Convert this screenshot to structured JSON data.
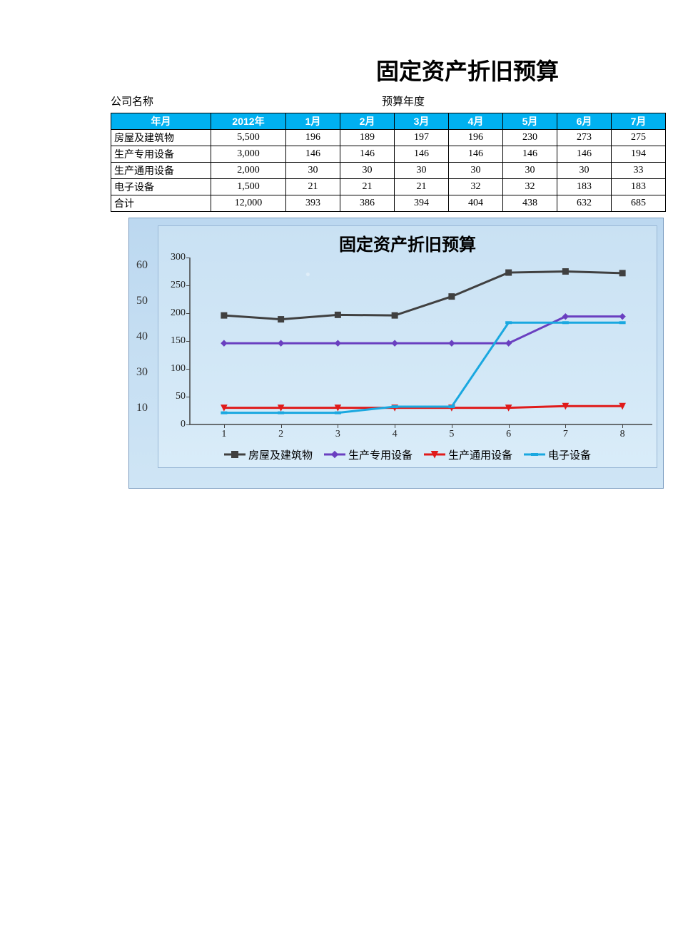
{
  "title": "固定资产折旧预算",
  "label_company": "公司名称",
  "label_year": "预算年度",
  "table": {
    "header_bg": "#00b0f0",
    "header_fg": "#ffffff",
    "headers": [
      "年月",
      "2012年",
      "1月",
      "2月",
      "3月",
      "4月",
      "5月",
      "6月",
      "7月"
    ],
    "rows": [
      {
        "name": "房屋及建筑物",
        "cells": [
          "5,500",
          "196",
          "189",
          "197",
          "196",
          "230",
          "273",
          "275"
        ]
      },
      {
        "name": "生产专用设备",
        "cells": [
          "3,000",
          "146",
          "146",
          "146",
          "146",
          "146",
          "146",
          "194"
        ]
      },
      {
        "name": "生产通用设备",
        "cells": [
          "2,000",
          "30",
          "30",
          "30",
          "30",
          "30",
          "30",
          "33"
        ]
      },
      {
        "name": "电子设备",
        "cells": [
          "1,500",
          "21",
          "21",
          "21",
          "32",
          "32",
          "183",
          "183"
        ]
      },
      {
        "name": "合计",
        "cells": [
          "12,000",
          "393",
          "386",
          "394",
          "404",
          "438",
          "632",
          "685"
        ]
      }
    ]
  },
  "outer_ghost_ticks": [
    "60",
    "50",
    "40",
    "30",
    "",
    "10"
  ],
  "chart": {
    "title": "固定资产折旧预算",
    "title_fontsize": 24,
    "background": "#d2e6f6",
    "outer_background": "#c5dff2",
    "axis_color": "#444444",
    "grid": false,
    "x_categories": [
      "1",
      "2",
      "3",
      "4",
      "5",
      "6",
      "7",
      "8"
    ],
    "ylim": [
      0,
      300
    ],
    "ytick_step": 50,
    "yticks": [
      0,
      50,
      100,
      150,
      200,
      250,
      300
    ],
    "series": [
      {
        "name": "房屋及建筑物",
        "color": "#404040",
        "marker": "square",
        "line_width": 3,
        "values": [
          196,
          189,
          197,
          196,
          230,
          273,
          275,
          272
        ]
      },
      {
        "name": "生产专用设备",
        "color": "#6a3fc0",
        "marker": "diamond",
        "line_width": 3,
        "values": [
          146,
          146,
          146,
          146,
          146,
          146,
          194,
          194
        ]
      },
      {
        "name": "生产通用设备",
        "color": "#e01b1b",
        "marker": "triangle-down",
        "line_width": 3,
        "values": [
          30,
          30,
          30,
          30,
          30,
          30,
          33,
          33
        ]
      },
      {
        "name": "电子设备",
        "color": "#1aa8e0",
        "marker": "hline",
        "line_width": 3,
        "values": [
          21,
          21,
          21,
          32,
          32,
          183,
          183,
          183
        ]
      }
    ],
    "legend_fontsize": 15,
    "marker_size": 8
  }
}
